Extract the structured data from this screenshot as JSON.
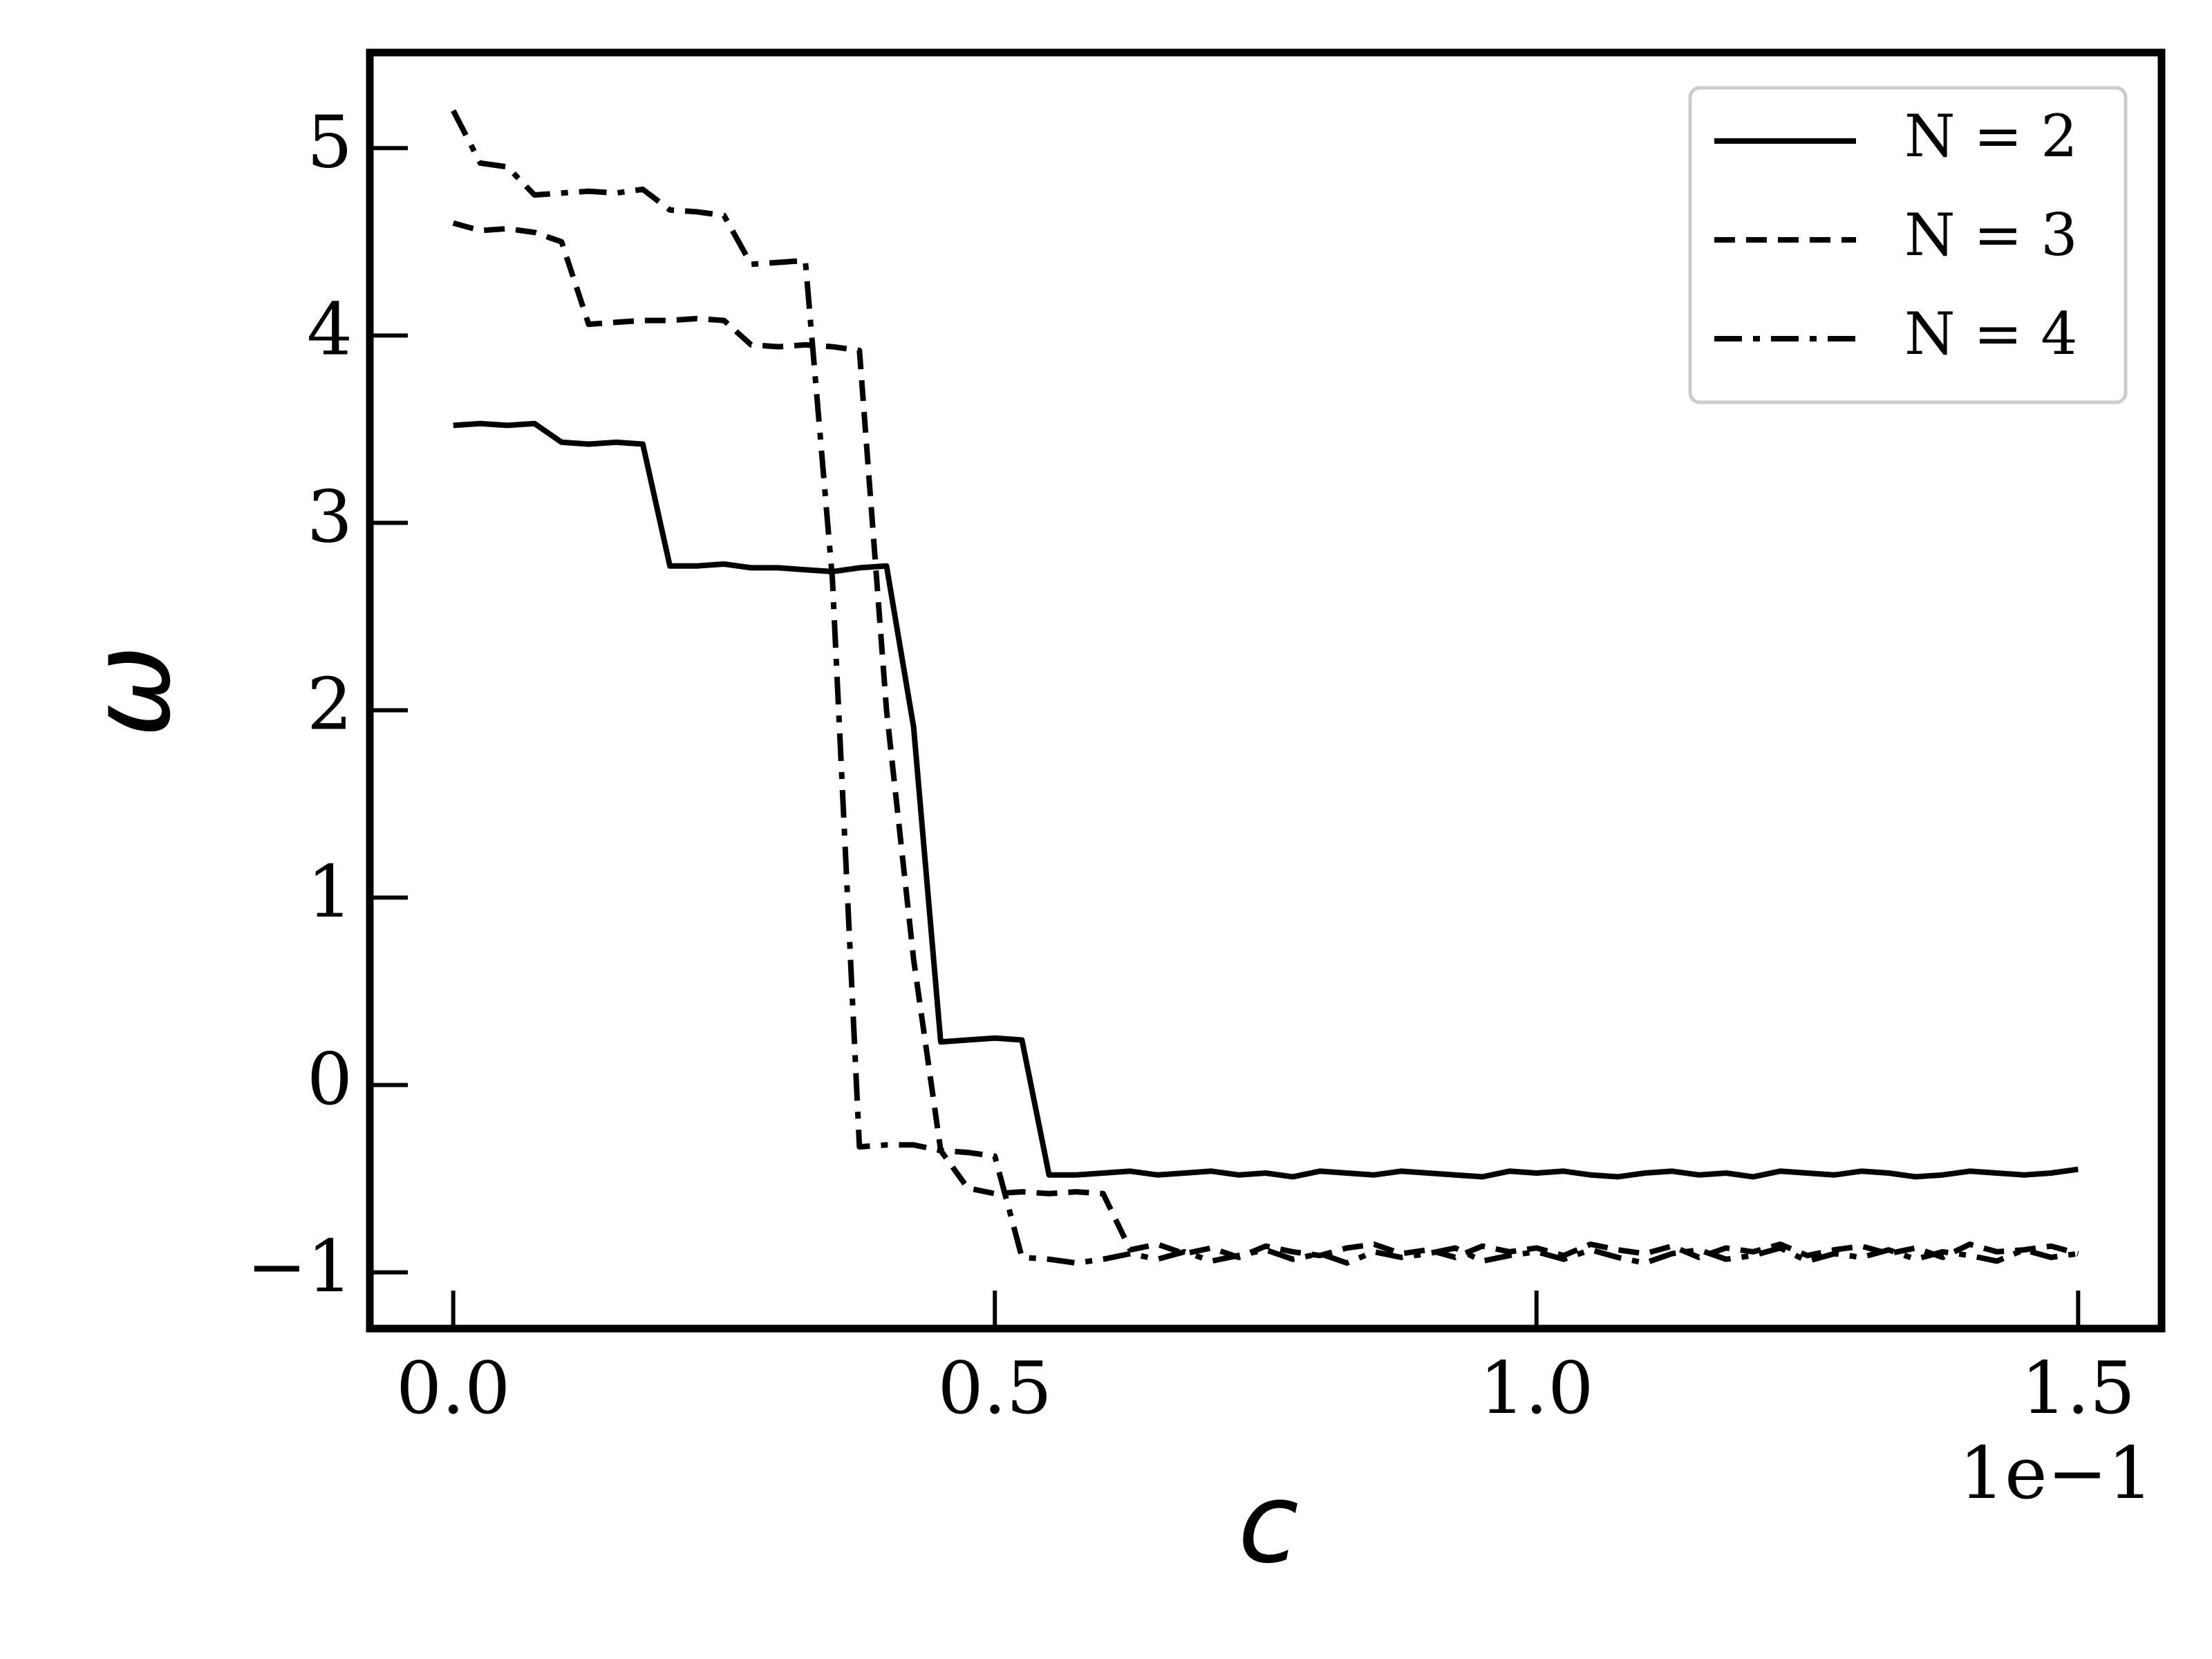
{
  "chart_data": {
    "type": "line",
    "xlabel": "c",
    "ylabel": "ω",
    "x_offset_label": "1e−1",
    "x": [
      0,
      0.025,
      0.05,
      0.075,
      0.1,
      0.125,
      0.15,
      0.175,
      0.2,
      0.225,
      0.25,
      0.275,
      0.3,
      0.325,
      0.35,
      0.375,
      0.4,
      0.425,
      0.45,
      0.475,
      0.5,
      0.525,
      0.55,
      0.575,
      0.6,
      0.625,
      0.65,
      0.675,
      0.7,
      0.725,
      0.75,
      0.775,
      0.8,
      0.825,
      0.85,
      0.875,
      0.9,
      0.925,
      0.95,
      0.975,
      1,
      1.025,
      1.05,
      1.075,
      1.1,
      1.125,
      1.15,
      1.175,
      1.2,
      1.225,
      1.25,
      1.275,
      1.3,
      1.325,
      1.35,
      1.375,
      1.4,
      1.425,
      1.45,
      1.475,
      1.5
    ],
    "series": [
      {
        "name": "N =  2",
        "color": "#000000",
        "dash": "solid",
        "values": [
          3.52,
          3.53,
          3.52,
          3.53,
          3.43,
          3.42,
          3.43,
          3.42,
          2.77,
          2.77,
          2.78,
          2.76,
          2.76,
          2.75,
          2.74,
          2.76,
          2.77,
          1.91,
          0.23,
          0.24,
          0.25,
          0.24,
          -0.48,
          -0.48,
          -0.47,
          -0.46,
          -0.48,
          -0.47,
          -0.46,
          -0.48,
          -0.47,
          -0.49,
          -0.46,
          -0.47,
          -0.48,
          -0.46,
          -0.47,
          -0.48,
          -0.49,
          -0.46,
          -0.47,
          -0.46,
          -0.48,
          -0.49,
          -0.47,
          -0.46,
          -0.48,
          -0.47,
          -0.49,
          -0.46,
          -0.47,
          -0.48,
          -0.46,
          -0.47,
          -0.49,
          -0.48,
          -0.46,
          -0.47,
          -0.48,
          -0.47,
          -0.45
        ]
      },
      {
        "name": "N =  3",
        "color": "#000000",
        "dash": "dashed",
        "values": [
          4.6,
          4.56,
          4.57,
          4.55,
          4.5,
          4.06,
          4.07,
          4.08,
          4.08,
          4.09,
          4.08,
          3.95,
          3.94,
          3.95,
          3.94,
          3.92,
          2.0,
          0.67,
          -0.35,
          -0.55,
          -0.58,
          -0.57,
          -0.58,
          -0.57,
          -0.58,
          -0.88,
          -0.85,
          -0.9,
          -0.87,
          -0.92,
          -0.86,
          -0.89,
          -0.91,
          -0.87,
          -0.85,
          -0.9,
          -0.88,
          -0.92,
          -0.86,
          -0.89,
          -0.87,
          -0.91,
          -0.85,
          -0.88,
          -0.9,
          -0.86,
          -0.92,
          -0.87,
          -0.89,
          -0.85,
          -0.91,
          -0.88,
          -0.86,
          -0.9,
          -0.87,
          -0.92,
          -0.85,
          -0.89,
          -0.88,
          -0.86,
          -0.9
        ]
      },
      {
        "name": "N =  4",
        "color": "#000000",
        "dash": "dashdot",
        "values": [
          5.2,
          4.92,
          4.9,
          4.75,
          4.76,
          4.77,
          4.76,
          4.78,
          4.67,
          4.66,
          4.64,
          4.38,
          4.39,
          4.4,
          2.7,
          -0.33,
          -0.32,
          -0.32,
          -0.35,
          -0.36,
          -0.38,
          -0.92,
          -0.93,
          -0.95,
          -0.93,
          -0.9,
          -0.93,
          -0.89,
          -0.94,
          -0.91,
          -0.88,
          -0.93,
          -0.9,
          -0.95,
          -0.89,
          -0.92,
          -0.9,
          -0.87,
          -0.94,
          -0.91,
          -0.89,
          -0.93,
          -0.88,
          -0.92,
          -0.95,
          -0.9,
          -0.88,
          -0.93,
          -0.91,
          -0.87,
          -0.94,
          -0.9,
          -0.92,
          -0.88,
          -0.93,
          -0.89,
          -0.91,
          -0.94,
          -0.88,
          -0.92,
          -0.9
        ]
      }
    ],
    "xlim": [
      -0.077,
      1.577
    ],
    "ylim": [
      -1.3,
      5.51
    ],
    "xticks": [
      {
        "value": 0,
        "label": "0.0"
      },
      0.5,
      {
        "value": 1,
        "label": "1.0"
      },
      1.5
    ],
    "yticks": [
      {
        "value": -1,
        "label": "−1"
      },
      0,
      1,
      2,
      3,
      4,
      5
    ],
    "grid": false,
    "legend": "upper right"
  }
}
